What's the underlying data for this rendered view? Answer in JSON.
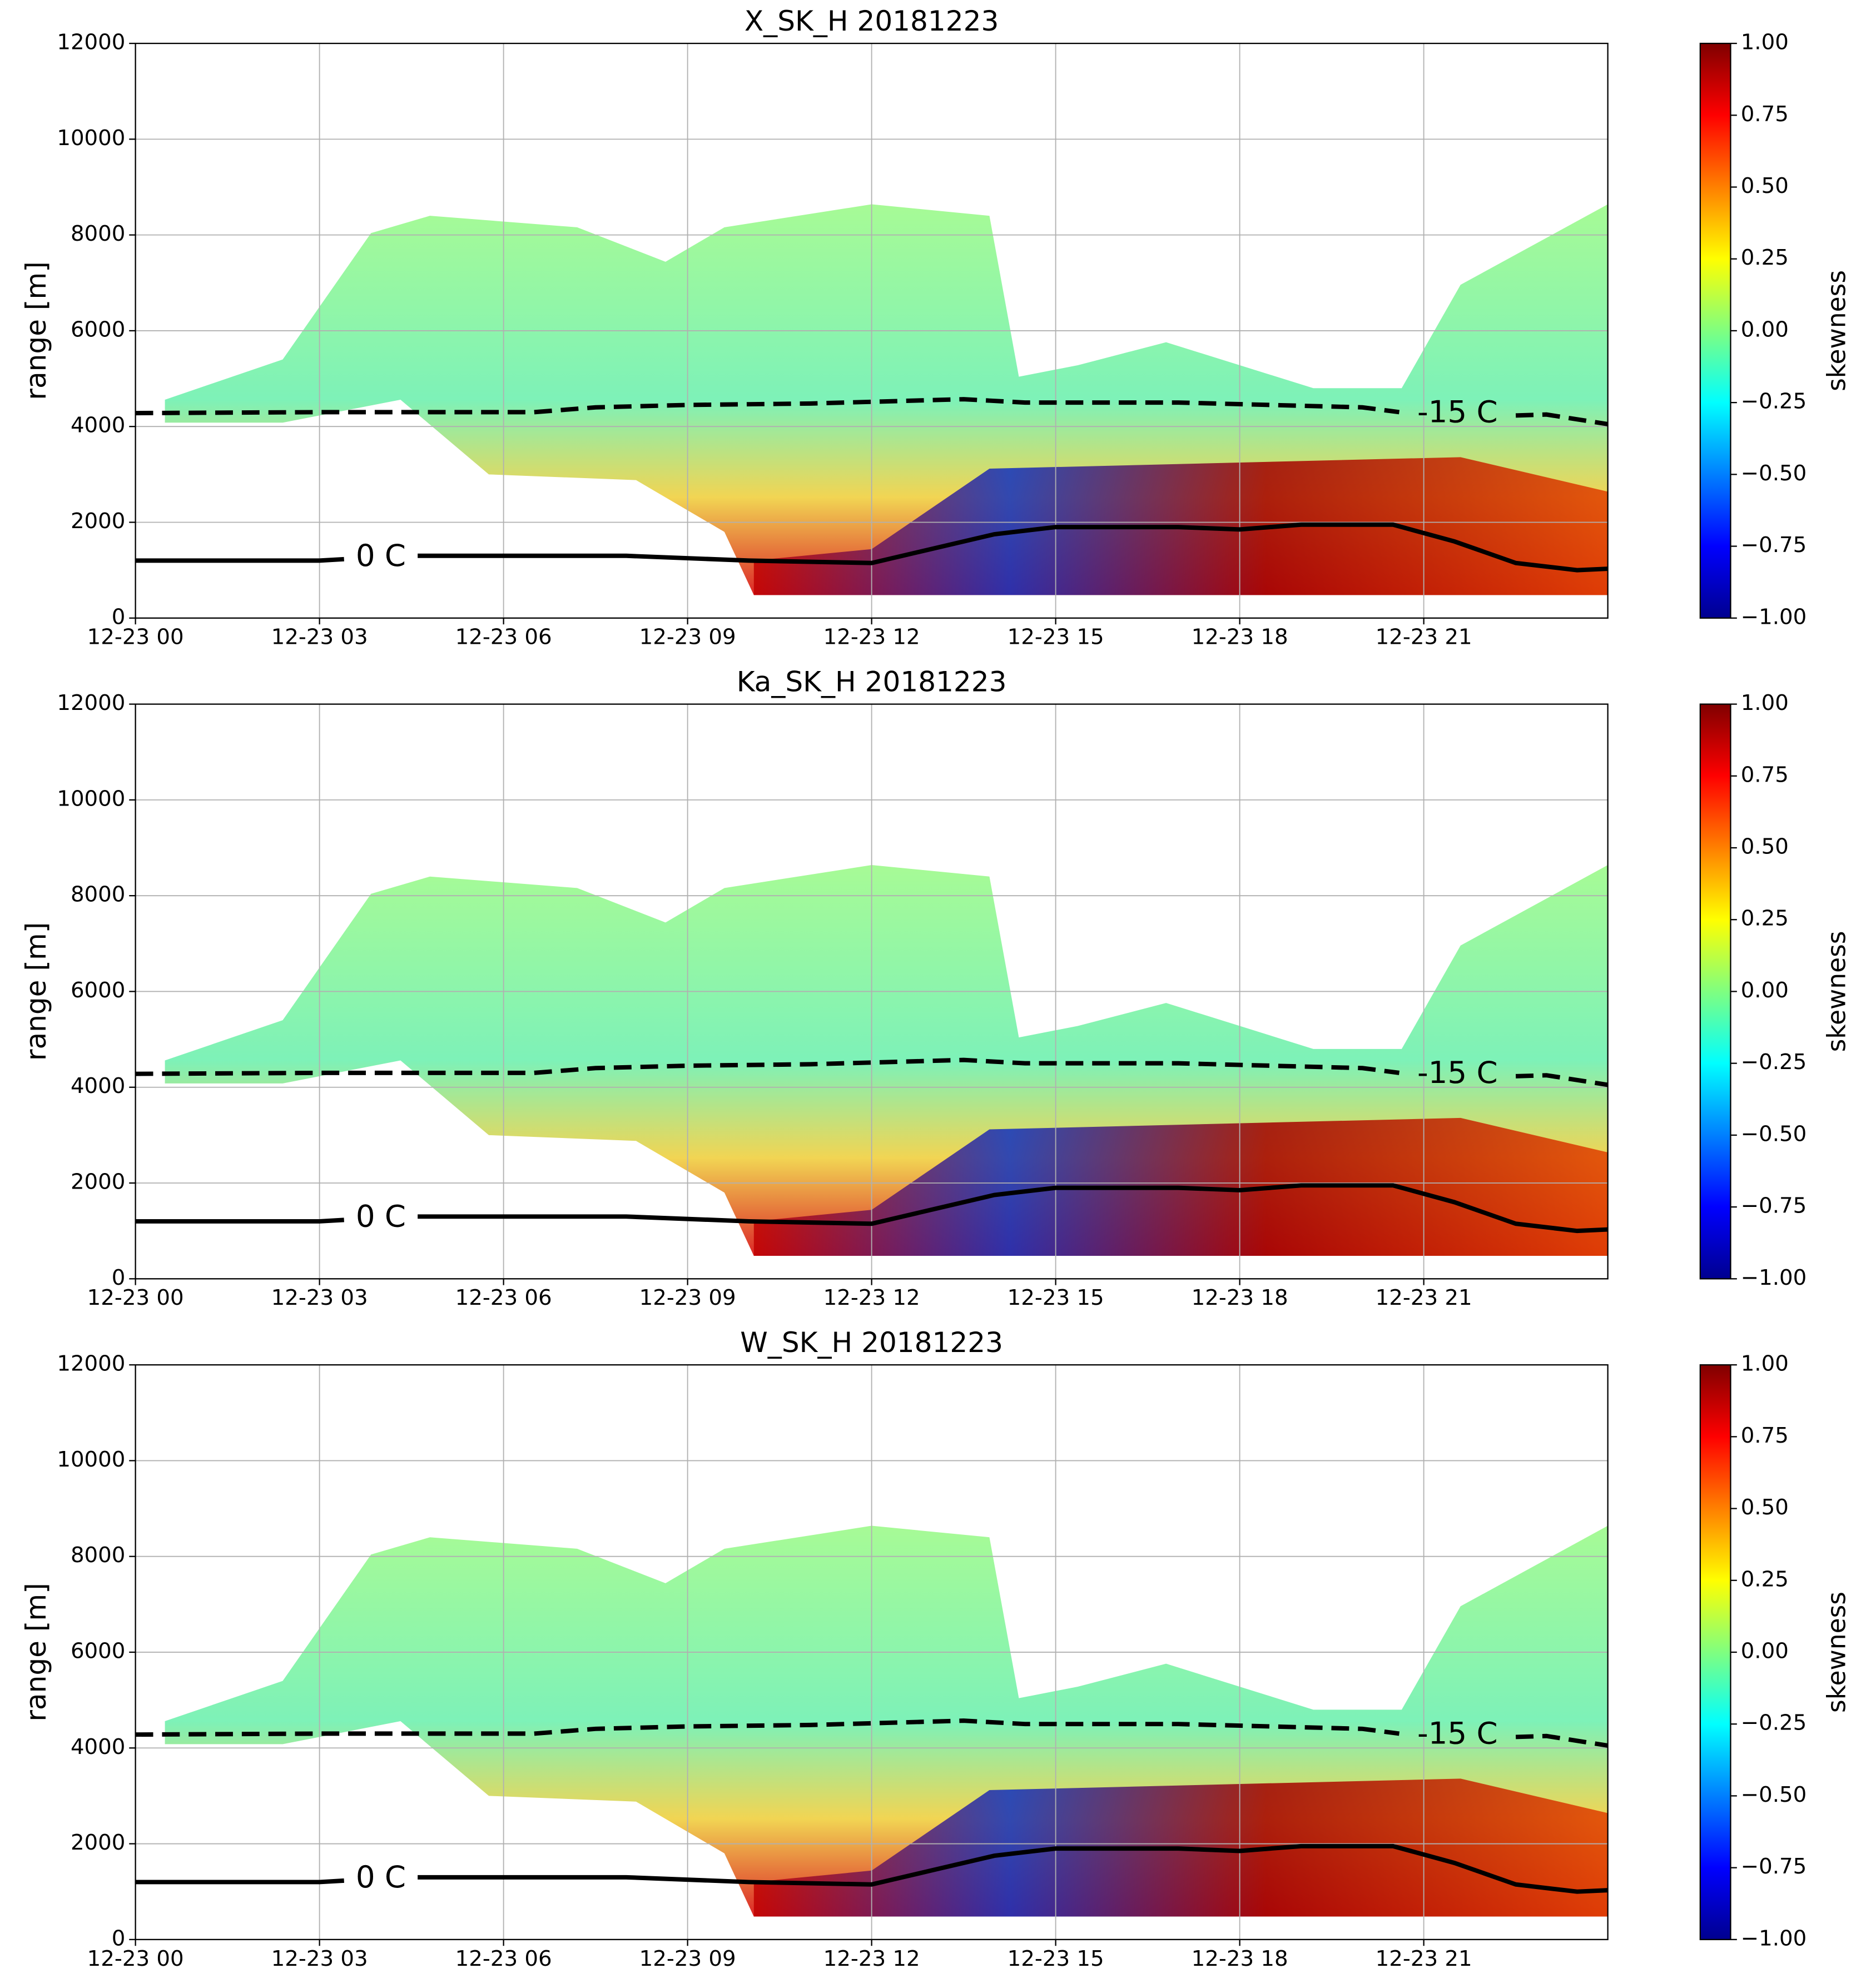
{
  "chart_data": [
    {
      "type": "heatmap",
      "title": "X_SK_H 20181223",
      "ylabel": "range [m]",
      "colorbar_label": "skewness",
      "colormap": "jet",
      "grid": true,
      "xlim": [
        0,
        24
      ],
      "xticks": [
        {
          "value": 0,
          "label": "12-23 00"
        },
        {
          "value": 3,
          "label": "12-23 03"
        },
        {
          "value": 6,
          "label": "12-23 06"
        },
        {
          "value": 9,
          "label": "12-23 09"
        },
        {
          "value": 12,
          "label": "12-23 12"
        },
        {
          "value": 15,
          "label": "12-23 15"
        },
        {
          "value": 18,
          "label": "12-23 18"
        },
        {
          "value": 21,
          "label": "12-23 21"
        }
      ],
      "ylim": [
        0,
        12000
      ],
      "yticks": [
        0,
        2000,
        4000,
        6000,
        8000,
        10000,
        12000
      ],
      "zlim": [
        -1,
        1
      ],
      "zticks": [
        {
          "value": 1,
          "label": "1.00"
        },
        {
          "value": 0.75,
          "label": "0.75"
        },
        {
          "value": 0.5,
          "label": "0.50"
        },
        {
          "value": 0.25,
          "label": "0.25"
        },
        {
          "value": 0,
          "label": "0.00"
        },
        {
          "value": -0.25,
          "label": "−0.25"
        },
        {
          "value": -0.5,
          "label": "−0.50"
        },
        {
          "value": -0.75,
          "label": "−0.75"
        },
        {
          "value": -1,
          "label": "−1.00"
        }
      ],
      "series": [
        {
          "name": "0 C",
          "color": "#000000",
          "style": "solid",
          "x": [
            0,
            3,
            3.4,
            null,
            4.6,
            8,
            10,
            12,
            13,
            14,
            15,
            17,
            18,
            19,
            20.5,
            21.5,
            22.5,
            23.5,
            24
          ],
          "values": [
            1200,
            1200,
            1230,
            null,
            1300,
            1300,
            1200,
            1150,
            1450,
            1750,
            1900,
            1900,
            1850,
            1950,
            1950,
            1600,
            1150,
            1000,
            1030
          ]
        },
        {
          "name": "-15 C",
          "color": "#000000",
          "style": "dashed",
          "x": [
            0,
            3,
            6.5,
            7.5,
            9,
            11,
            13.5,
            14.5,
            17,
            20,
            20.6,
            null,
            22.5,
            23,
            24
          ],
          "values": [
            4280,
            4300,
            4300,
            4400,
            4450,
            4480,
            4570,
            4500,
            4500,
            4400,
            4300,
            null,
            4230,
            4250,
            4050
          ]
        }
      ]
    },
    {
      "type": "heatmap",
      "title": "Ka_SK_H 20181223",
      "ylabel": "range [m]",
      "colorbar_label": "skewness",
      "colormap": "jet",
      "grid": true,
      "xlim": [
        0,
        24
      ],
      "xticks": [
        {
          "value": 0,
          "label": "12-23 00"
        },
        {
          "value": 3,
          "label": "12-23 03"
        },
        {
          "value": 6,
          "label": "12-23 06"
        },
        {
          "value": 9,
          "label": "12-23 09"
        },
        {
          "value": 12,
          "label": "12-23 12"
        },
        {
          "value": 15,
          "label": "12-23 15"
        },
        {
          "value": 18,
          "label": "12-23 18"
        },
        {
          "value": 21,
          "label": "12-23 21"
        }
      ],
      "ylim": [
        0,
        12000
      ],
      "yticks": [
        0,
        2000,
        4000,
        6000,
        8000,
        10000,
        12000
      ],
      "zlim": [
        -1,
        1
      ],
      "zticks": [
        {
          "value": 1,
          "label": "1.00"
        },
        {
          "value": 0.75,
          "label": "0.75"
        },
        {
          "value": 0.5,
          "label": "0.50"
        },
        {
          "value": 0.25,
          "label": "0.25"
        },
        {
          "value": 0,
          "label": "0.00"
        },
        {
          "value": -0.25,
          "label": "−0.25"
        },
        {
          "value": -0.5,
          "label": "−0.50"
        },
        {
          "value": -0.75,
          "label": "−0.75"
        },
        {
          "value": -1,
          "label": "−1.00"
        }
      ],
      "series": [
        {
          "name": "0 C",
          "color": "#000000",
          "style": "solid",
          "x": [
            0,
            3,
            3.4,
            null,
            4.6,
            8,
            10,
            12,
            13,
            14,
            15,
            17,
            18,
            19,
            20.5,
            21.5,
            22.5,
            23.5,
            24
          ],
          "values": [
            1200,
            1200,
            1230,
            null,
            1300,
            1300,
            1200,
            1150,
            1450,
            1750,
            1900,
            1900,
            1850,
            1950,
            1950,
            1600,
            1150,
            1000,
            1030
          ]
        },
        {
          "name": "-15 C",
          "color": "#000000",
          "style": "dashed",
          "x": [
            0,
            3,
            6.5,
            7.5,
            9,
            11,
            13.5,
            14.5,
            17,
            20,
            20.6,
            null,
            22.5,
            23,
            24
          ],
          "values": [
            4280,
            4300,
            4300,
            4400,
            4450,
            4480,
            4570,
            4500,
            4500,
            4400,
            4300,
            null,
            4230,
            4250,
            4050
          ]
        }
      ]
    },
    {
      "type": "heatmap",
      "title": "W_SK_H 20181223",
      "ylabel": "range [m]",
      "colorbar_label": "skewness",
      "colormap": "jet",
      "grid": true,
      "xlim": [
        0,
        24
      ],
      "xticks": [
        {
          "value": 0,
          "label": "12-23 00"
        },
        {
          "value": 3,
          "label": "12-23 03"
        },
        {
          "value": 6,
          "label": "12-23 06"
        },
        {
          "value": 9,
          "label": "12-23 09"
        },
        {
          "value": 12,
          "label": "12-23 12"
        },
        {
          "value": 15,
          "label": "12-23 15"
        },
        {
          "value": 18,
          "label": "12-23 18"
        },
        {
          "value": 21,
          "label": "12-23 21"
        }
      ],
      "ylim": [
        0,
        12000
      ],
      "yticks": [
        0,
        2000,
        4000,
        6000,
        8000,
        10000,
        12000
      ],
      "zlim": [
        -1,
        1
      ],
      "zticks": [
        {
          "value": 1,
          "label": "1.00"
        },
        {
          "value": 0.75,
          "label": "0.75"
        },
        {
          "value": 0.5,
          "label": "0.50"
        },
        {
          "value": 0.25,
          "label": "0.25"
        },
        {
          "value": 0,
          "label": "0.00"
        },
        {
          "value": -0.25,
          "label": "−0.25"
        },
        {
          "value": -0.5,
          "label": "−0.50"
        },
        {
          "value": -0.75,
          "label": "−0.75"
        },
        {
          "value": -1,
          "label": "−1.00"
        }
      ],
      "series": [
        {
          "name": "0 C",
          "color": "#000000",
          "style": "solid",
          "x": [
            0,
            3,
            3.4,
            null,
            4.6,
            8,
            10,
            12,
            13,
            14,
            15,
            17,
            18,
            19,
            20.5,
            21.5,
            22.5,
            23.5,
            24
          ],
          "values": [
            1200,
            1200,
            1230,
            null,
            1300,
            1300,
            1200,
            1150,
            1450,
            1750,
            1900,
            1900,
            1850,
            1950,
            1950,
            1600,
            1150,
            1000,
            1030
          ]
        },
        {
          "name": "-15 C",
          "color": "#000000",
          "style": "dashed",
          "x": [
            0,
            3,
            6.5,
            7.5,
            9,
            11,
            13.5,
            14.5,
            17,
            20,
            20.6,
            null,
            22.5,
            23,
            24
          ],
          "values": [
            4280,
            4300,
            4300,
            4400,
            4450,
            4480,
            4570,
            4500,
            4500,
            4400,
            4300,
            null,
            4230,
            4250,
            4050
          ]
        }
      ]
    }
  ]
}
